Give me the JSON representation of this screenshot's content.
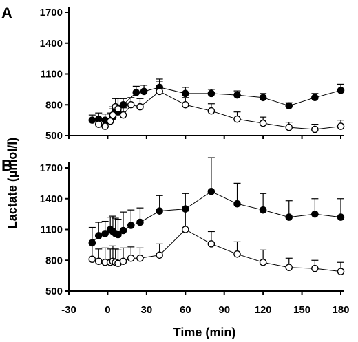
{
  "chart_data": {
    "type": "line",
    "ylabel": "Lactate (µmol/l)",
    "xlabel": "Time (min)",
    "xlim": [
      -30,
      180
    ],
    "xticks": [
      -30,
      0,
      30,
      60,
      90,
      120,
      150,
      180
    ],
    "x_tick_labels": [
      "-30",
      "0",
      "30",
      "60",
      "90",
      "120",
      "150",
      "180"
    ],
    "grid": false,
    "panels": [
      {
        "label": "A",
        "ylim": [
          500,
          1700
        ],
        "yticks": [
          500,
          800,
          1100,
          1400,
          1700
        ],
        "y_tick_labels": [
          "500",
          "800",
          "1100",
          "1400",
          "1700"
        ],
        "series": [
          {
            "marker": "filled",
            "color": "#000000",
            "x": [
              -12,
              -7,
              -2,
              2,
              4,
              6,
              8,
              12,
              22,
              28,
              40,
              60,
              80,
              100,
              120,
              140,
              160,
              180
            ],
            "y": [
              650,
              660,
              650,
              640,
              680,
              740,
              730,
              800,
              920,
              930,
              970,
              910,
              910,
              895,
              870,
              790,
              870,
              940
            ],
            "err": [
              50,
              60,
              60,
              70,
              80,
              60,
              60,
              60,
              60,
              60,
              80,
              60,
              40,
              40,
              40,
              30,
              40,
              60
            ]
          },
          {
            "marker": "open",
            "color": "#000000",
            "x": [
              -7,
              -2,
              2,
              4,
              6,
              8,
              12,
              18,
              25,
              40,
              60,
              80,
              100,
              120,
              140,
              160,
              180
            ],
            "y": [
              610,
              590,
              640,
              700,
              780,
              760,
              700,
              800,
              780,
              930,
              800,
              740,
              660,
              620,
              580,
              560,
              590
            ],
            "err": [
              50,
              50,
              80,
              80,
              80,
              100,
              70,
              70,
              80,
              100,
              70,
              70,
              70,
              60,
              50,
              50,
              60
            ]
          }
        ]
      },
      {
        "label": "B",
        "ylim": [
          500,
          1700
        ],
        "yticks": [
          500,
          800,
          1100,
          1400,
          1700
        ],
        "y_tick_labels": [
          "500",
          "800",
          "1100",
          "1400",
          "1700"
        ],
        "series": [
          {
            "marker": "filled",
            "color": "#000000",
            "x": [
              -12,
              -7,
              -2,
              2,
              4,
              6,
              8,
              12,
              18,
              25,
              40,
              60,
              80,
              100,
              120,
              140,
              160,
              180
            ],
            "y": [
              970,
              1040,
              1060,
              1100,
              1080,
              1060,
              1050,
              1090,
              1140,
              1170,
              1280,
              1300,
              1470,
              1350,
              1290,
              1220,
              1250,
              1220
            ],
            "err": [
              150,
              130,
              120,
              120,
              150,
              150,
              150,
              180,
              150,
              140,
              150,
              150,
              330,
              200,
              160,
              160,
              150,
              180
            ]
          },
          {
            "marker": "open",
            "color": "#000000",
            "x": [
              -12,
              -7,
              -2,
              2,
              4,
              6,
              8,
              12,
              18,
              25,
              40,
              60,
              80,
              100,
              120,
              140,
              160,
              180
            ],
            "y": [
              810,
              790,
              780,
              780,
              790,
              780,
              770,
              790,
              820,
              820,
              850,
              1100,
              960,
              860,
              780,
              730,
              720,
              690
            ],
            "err": [
              150,
              120,
              140,
              130,
              150,
              130,
              130,
              130,
              110,
              100,
              110,
              180,
              120,
              120,
              120,
              90,
              80,
              90
            ]
          }
        ]
      }
    ]
  }
}
